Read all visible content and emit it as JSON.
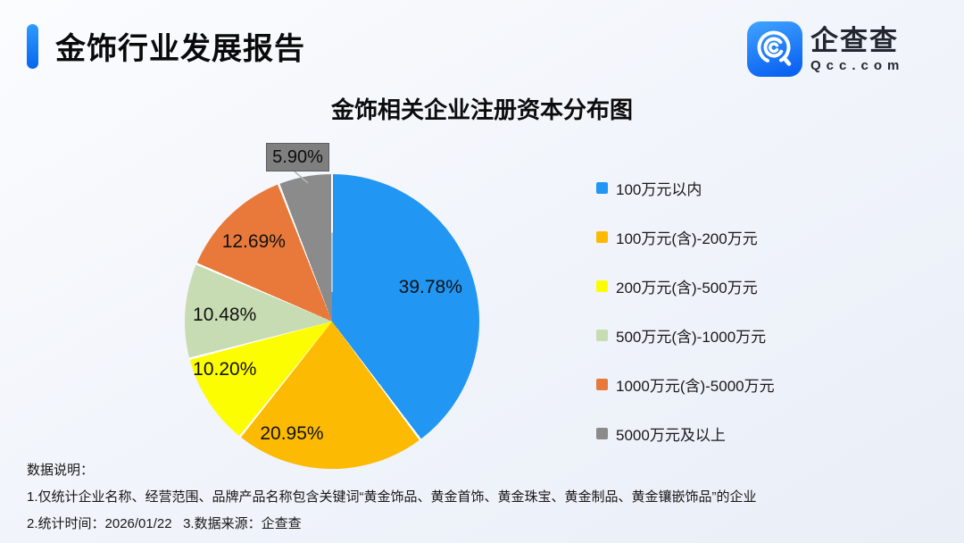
{
  "header": {
    "title": "金饰行业发展报告"
  },
  "logo": {
    "name": "企查查",
    "domain": "Qcc.com",
    "icon_color_top": "#3ea0ff",
    "icon_color_bottom": "#0b63f2"
  },
  "chart_data": {
    "type": "pie",
    "title": "金饰相关企业注册资本分布图",
    "categories": [
      "100万元以内",
      "100万元(含)-200万元",
      "200万元(含)-500万元",
      "500万元(含)-1000万元",
      "1000万元(含)-5000万元",
      "5000万元及以上"
    ],
    "values": [
      39.78,
      20.95,
      10.2,
      10.48,
      12.69,
      5.9
    ],
    "labels": [
      "39.78%",
      "20.95%",
      "10.20%",
      "10.48%",
      "12.69%",
      "5.90%"
    ],
    "colors": [
      "#2196F3",
      "#FCBA02",
      "#FDFD02",
      "#C7DCB2",
      "#E8793B",
      "#8B8B8B"
    ],
    "unit": "%",
    "legend_position": "right",
    "start_angle_deg": 0,
    "direction": "clockwise",
    "callout_label": "5.90%",
    "callout_segment": "5000万元及以上",
    "slice_border_color": "#ffffff"
  },
  "footer": {
    "heading": "数据说明：",
    "note1": "1.仅统计企业名称、经营范围、品牌产品名称包含关键词“黄金饰品、黄金首饰、黄金珠宝、黄金制品、黄金镶嵌饰品”的企业",
    "note2": "2.统计时间：2026/01/22   3.数据来源：企查查"
  }
}
